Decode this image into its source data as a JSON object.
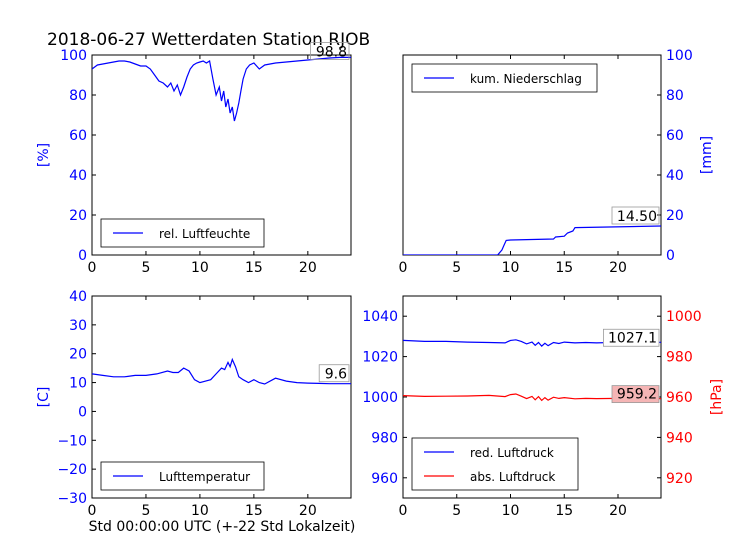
{
  "title": "2018-06-27 Wetterdaten Station RJOB",
  "xlabel": "Std 00:00:00 UTC (+-22 Std Lokalzeit)",
  "colors": {
    "blue": "#0000ff",
    "red": "#ff0000",
    "black": "#000000"
  },
  "chart_data": [
    {
      "id": "humidity",
      "type": "line",
      "ylabel": "[%]",
      "xlim": [
        0,
        24
      ],
      "ylim": [
        0,
        100
      ],
      "xticks": [
        0,
        5,
        10,
        15,
        20
      ],
      "yticks": [
        0,
        20,
        40,
        60,
        80,
        100
      ],
      "tick_color": "blue",
      "axis_side": "left",
      "legend": {
        "position": "lower-left",
        "entries": [
          {
            "name": "rel. Luftfeuchte",
            "color": "blue"
          }
        ]
      },
      "end_label": "98.8",
      "series": [
        {
          "name": "rel. Luftfeuchte",
          "color": "blue",
          "x": [
            0,
            0.5,
            1,
            1.5,
            2,
            2.5,
            3,
            3.5,
            4,
            4.5,
            5,
            5.4,
            5.8,
            6.2,
            6.6,
            7,
            7.3,
            7.6,
            7.9,
            8.2,
            8.5,
            8.8,
            9.1,
            9.4,
            9.7,
            10,
            10.3,
            10.6,
            10.9,
            11.2,
            11.5,
            11.8,
            12.0,
            12.2,
            12.4,
            12.6,
            12.8,
            13.0,
            13.2,
            13.4,
            13.6,
            13.8,
            14.0,
            14.3,
            14.6,
            15,
            15.5,
            16,
            17,
            18,
            19,
            20,
            21,
            22,
            23,
            24
          ],
          "y": [
            93,
            95,
            95.5,
            96,
            96.5,
            97,
            97,
            96.5,
            95.5,
            94.5,
            94.5,
            93,
            90,
            87,
            86,
            84,
            86,
            82,
            85,
            80,
            84,
            89,
            93,
            95,
            96,
            96.5,
            97,
            96,
            97,
            88,
            80,
            84,
            77,
            82,
            74,
            78,
            71,
            74,
            67,
            71,
            76,
            82,
            88,
            93,
            95,
            96,
            93,
            95,
            96,
            96.5,
            97,
            97.5,
            98,
            98.5,
            98.8,
            98.8
          ]
        }
      ]
    },
    {
      "id": "precip",
      "type": "line",
      "ylabel": "[mm]",
      "xlim": [
        0,
        24
      ],
      "ylim": [
        0,
        100
      ],
      "xticks": [
        0,
        5,
        10,
        15,
        20
      ],
      "yticks": [
        0,
        20,
        40,
        60,
        80,
        100
      ],
      "tick_color": "blue",
      "axis_side": "right",
      "legend": {
        "position": "upper-left",
        "entries": [
          {
            "name": "kum. Niederschlag",
            "color": "blue"
          }
        ]
      },
      "end_label": "14.50",
      "series": [
        {
          "name": "kum. Niederschlag",
          "color": "blue",
          "x": [
            0,
            8.8,
            9.2,
            9.4,
            9.6,
            10,
            14,
            14.2,
            15,
            15.3,
            15.8,
            16,
            24
          ],
          "y": [
            0,
            0,
            2.5,
            5,
            7.3,
            7.5,
            8,
            9,
            9.4,
            11,
            12,
            13.7,
            14.5
          ]
        }
      ]
    },
    {
      "id": "temperature",
      "type": "line",
      "ylabel": "[C]",
      "xlim": [
        0,
        24
      ],
      "ylim": [
        -30,
        40
      ],
      "xticks": [
        0,
        5,
        10,
        15,
        20
      ],
      "yticks": [
        -30,
        -20,
        -10,
        0,
        10,
        20,
        30,
        40
      ],
      "tick_color": "blue",
      "axis_side": "left",
      "legend": {
        "position": "lower-left",
        "entries": [
          {
            "name": "Lufttemperatur",
            "color": "blue"
          }
        ]
      },
      "end_label": "9.6",
      "series": [
        {
          "name": "Lufttemperatur",
          "color": "blue",
          "x": [
            0,
            1,
            2,
            3,
            4,
            5,
            6,
            7,
            7.5,
            8,
            8.5,
            9,
            9.5,
            10,
            11,
            11.5,
            12,
            12.3,
            12.6,
            12.8,
            13,
            13.3,
            13.6,
            14,
            14.5,
            15,
            15.5,
            16,
            17,
            18,
            19,
            20,
            21,
            22,
            23,
            24
          ],
          "y": [
            13,
            12.5,
            12,
            12,
            12.5,
            12.5,
            13,
            14,
            13.5,
            13.5,
            15,
            14,
            11,
            10,
            11,
            13,
            15,
            14.5,
            17,
            15.5,
            18,
            15.5,
            12,
            11,
            10,
            11,
            10,
            9.5,
            11.5,
            10.5,
            10,
            9.8,
            9.7,
            9.6,
            9.6,
            9.6
          ]
        }
      ]
    },
    {
      "id": "pressure",
      "type": "line",
      "ylabel": "[hPa]",
      "xlim": [
        0,
        24
      ],
      "ylim_left": [
        950,
        1050
      ],
      "ylim_right": [
        910,
        1010
      ],
      "xticks": [
        0,
        5,
        10,
        15,
        20
      ],
      "yticks_left": [
        960,
        980,
        1000,
        1020,
        1040
      ],
      "yticks_right": [
        920,
        940,
        960,
        980,
        1000
      ],
      "legend": {
        "position": "lower-left",
        "entries": [
          {
            "name": "red. Luftdruck",
            "color": "blue"
          },
          {
            "name": "abs. Luftdruck",
            "color": "red"
          }
        ]
      },
      "end_labels": [
        "1027.1",
        "959.2"
      ],
      "series": [
        {
          "name": "red. Luftdruck",
          "color": "blue",
          "axis": "left",
          "x": [
            0,
            2,
            4,
            6,
            8,
            9.5,
            10,
            10.5,
            11,
            11.5,
            12,
            12.3,
            12.6,
            12.9,
            13.2,
            13.5,
            14,
            14.5,
            15,
            16,
            17,
            18,
            20,
            22,
            24
          ],
          "y": [
            1028,
            1027.5,
            1027.5,
            1027.2,
            1027,
            1026.8,
            1028,
            1028.3,
            1027.5,
            1026.3,
            1027.2,
            1025.6,
            1027,
            1025.2,
            1026.6,
            1025.4,
            1027,
            1026.5,
            1027.2,
            1026.8,
            1027,
            1026.8,
            1027.1,
            1027.2,
            1027.1
          ]
        },
        {
          "name": "abs. Luftdruck",
          "color": "red",
          "axis": "right",
          "x": [
            0,
            2,
            4,
            6,
            8,
            9.5,
            10,
            10.5,
            11,
            11.5,
            12,
            12.3,
            12.6,
            12.9,
            13.2,
            13.5,
            14,
            14.5,
            15,
            16,
            17,
            18,
            20,
            22,
            24
          ],
          "y": [
            960.7,
            960.3,
            960.4,
            960.5,
            960.8,
            960.2,
            961.2,
            961.5,
            960.4,
            959.2,
            960.3,
            958.6,
            960.2,
            958.3,
            959.7,
            958.4,
            959.9,
            959.3,
            959.7,
            959.1,
            959.3,
            959.2,
            959.3,
            959.2,
            959.2
          ]
        }
      ]
    }
  ]
}
